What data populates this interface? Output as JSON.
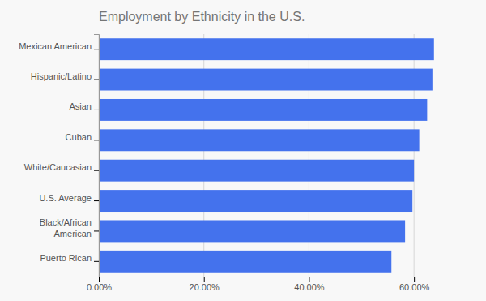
{
  "chart_data": {
    "type": "bar",
    "orientation": "horizontal",
    "title": "Employment by Ethnicity in the U.S.",
    "categories": [
      "Puerto Rican",
      "Black/African\nAmerican",
      "U.S. Average",
      "White/Caucasian",
      "Cuban",
      "Asian",
      "Hispanic/Latino",
      "Mexican American"
    ],
    "values": [
      0.557,
      0.583,
      0.597,
      0.6,
      0.61,
      0.625,
      0.635,
      0.638
    ],
    "color": "#4472ED",
    "xlim": [
      0,
      0.7
    ],
    "xticks": [
      {
        "value": 0.0,
        "label": "0.00%"
      },
      {
        "value": 0.2,
        "label": "20.00%"
      },
      {
        "value": 0.4,
        "label": "40.00%"
      },
      {
        "value": 0.6,
        "label": "60.00%"
      }
    ],
    "grid": true
  }
}
